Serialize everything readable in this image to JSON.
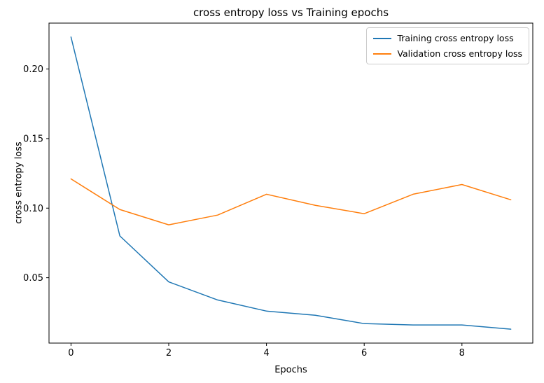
{
  "chart_data": {
    "type": "line",
    "title": "cross entropy loss vs Training epochs",
    "xlabel": "Epochs",
    "ylabel": "cross entropy loss",
    "x": [
      0,
      1,
      2,
      3,
      4,
      5,
      6,
      7,
      8,
      9
    ],
    "series": [
      {
        "name": "Training cross entropy loss",
        "color": "#1f77b4",
        "values": [
          0.223,
          0.08,
          0.047,
          0.034,
          0.026,
          0.023,
          0.017,
          0.016,
          0.016,
          0.013
        ]
      },
      {
        "name": "Validation cross entropy loss",
        "color": "#ff7f0e",
        "values": [
          0.121,
          0.099,
          0.088,
          0.095,
          0.11,
          0.102,
          0.096,
          0.11,
          0.117,
          0.106
        ]
      }
    ],
    "xlim": [
      -0.45,
      9.45
    ],
    "ylim": [
      0.003,
      0.233
    ],
    "xticks": [
      0,
      2,
      4,
      6,
      8
    ],
    "yticks": [
      0.05,
      0.1,
      0.15,
      0.2
    ],
    "legend_position": "upper right",
    "grid": false,
    "axis_color": "#000000",
    "background_color": "#ffffff"
  }
}
